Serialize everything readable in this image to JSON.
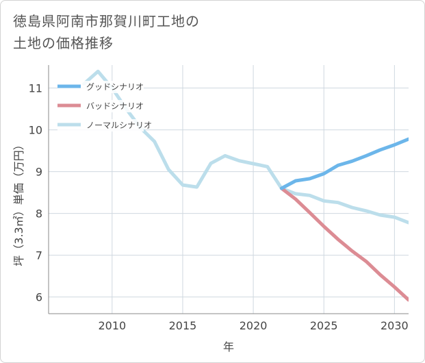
{
  "title_line1": "徳島県阿南市那賀川町工地の",
  "title_line2": "土地の価格推移",
  "chart_data": {
    "type": "line",
    "xlabel": "年",
    "ylabel": "坪（3.3㎡）単価（万円）",
    "xlim": [
      2005.5,
      2031
    ],
    "ylim": [
      5.6,
      11.55
    ],
    "xticks": [
      2010,
      2015,
      2020,
      2025,
      2030
    ],
    "yticks": [
      6,
      7,
      8,
      9,
      10,
      11
    ],
    "grid": true,
    "legend_position": "top-left",
    "series": [
      {
        "name": "グッドシナリオ",
        "color": "#6cb6ea",
        "x": [
          2022,
          2023,
          2024,
          2025,
          2026,
          2027,
          2028,
          2029,
          2030,
          2031
        ],
        "y": [
          8.6,
          8.78,
          8.83,
          8.95,
          9.15,
          9.25,
          9.38,
          9.52,
          9.64,
          9.78
        ]
      },
      {
        "name": "バッドシナリオ",
        "color": "#dc8c94",
        "x": [
          2022,
          2023,
          2024,
          2025,
          2026,
          2027,
          2028,
          2029,
          2030,
          2031
        ],
        "y": [
          8.6,
          8.34,
          8.02,
          7.69,
          7.38,
          7.1,
          6.85,
          6.53,
          6.24,
          5.93
        ]
      },
      {
        "name": "ノーマルシナリオ",
        "color": "#bcdeeb",
        "x": [
          2008,
          2009,
          2010,
          2011,
          2012,
          2013,
          2014,
          2015,
          2016,
          2017,
          2018,
          2019,
          2020,
          2021,
          2022,
          2023,
          2024,
          2025,
          2026,
          2027,
          2028,
          2029,
          2030,
          2031
        ],
        "y": [
          11.1,
          11.4,
          11.0,
          10.5,
          10.05,
          9.72,
          9.05,
          8.68,
          8.63,
          9.2,
          9.38,
          9.26,
          9.19,
          9.12,
          8.6,
          8.47,
          8.43,
          8.3,
          8.26,
          8.14,
          8.06,
          7.96,
          7.91,
          7.78
        ]
      }
    ]
  }
}
